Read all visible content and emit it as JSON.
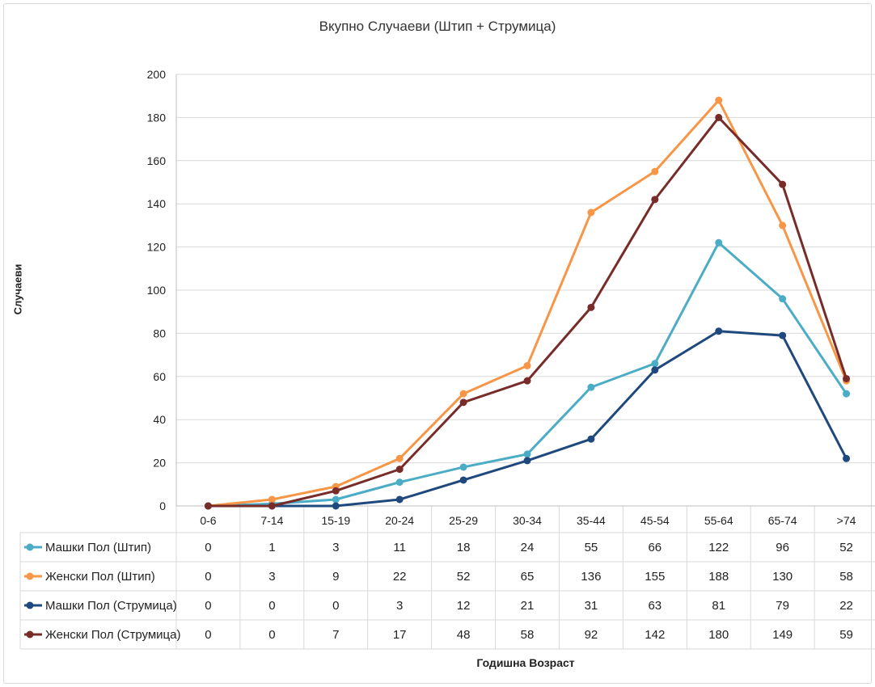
{
  "chart_data": {
    "type": "line",
    "title": "Вкупно Случаеви (Штип + Струмица)",
    "ylabel": "Случаеви",
    "xlabel": "Годишна Возраст",
    "categories": [
      "0-6",
      "7-14",
      "15-19",
      "20-24",
      "25-29",
      "30-34",
      "35-44",
      "45-54",
      "55-64",
      "65-74",
      ">74"
    ],
    "ylim": [
      0,
      200
    ],
    "yticks": [
      0,
      20,
      40,
      60,
      80,
      100,
      120,
      140,
      160,
      180,
      200
    ],
    "grid": true,
    "legend_placement": "data-table",
    "series": [
      {
        "name": "Машки Пол (Штип)",
        "color": "#4bacc6",
        "values": [
          0,
          1,
          3,
          11,
          18,
          24,
          55,
          66,
          122,
          96,
          52
        ]
      },
      {
        "name": "Женски Пол (Штип)",
        "color": "#f79646",
        "values": [
          0,
          3,
          9,
          22,
          52,
          65,
          136,
          155,
          188,
          130,
          58
        ]
      },
      {
        "name": "Машки Пол (Струмица)",
        "color": "#1f497d",
        "values": [
          0,
          0,
          0,
          3,
          12,
          21,
          31,
          63,
          81,
          79,
          22
        ]
      },
      {
        "name": "Женски Пол (Струмица)",
        "color": "#772c2a",
        "values": [
          0,
          0,
          7,
          17,
          48,
          58,
          92,
          142,
          180,
          149,
          59
        ]
      }
    ]
  }
}
